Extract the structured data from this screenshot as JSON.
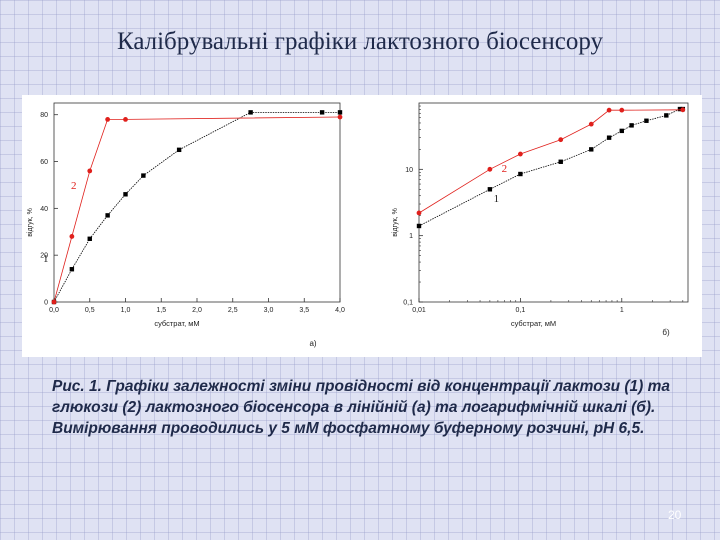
{
  "slide": {
    "title": "Калібрувальні графіки лактозного біосенсору",
    "caption": "Рис. 1. Графіки залежності зміни провідності від концентрації лактози (1) та глюкози (2) лактозного біосенсора в лінійній (а) та логарифмічній шкалі (б). Вимірювання проводились у 5 мМ фосфатному буферному розчині, рН 6,5.",
    "page_number": "20"
  },
  "chart_data": [
    {
      "type": "scatter",
      "panel_label": "а)",
      "xlabel": "субстрат, мМ",
      "ylabel": "відгук, %",
      "xlim": [
        0,
        4.0
      ],
      "ylim": [
        0,
        85
      ],
      "x_ticks": [
        0,
        0.5,
        1.0,
        1.5,
        2.0,
        2.5,
        3.0,
        3.5,
        4.0
      ],
      "x_tick_labels": [
        "0,0",
        "0,5",
        "1,0",
        "1,5",
        "2,0",
        "2,5",
        "3,0",
        "3,5",
        "4,0"
      ],
      "y_ticks": [
        0,
        20,
        40,
        60,
        80
      ],
      "y_tick_labels": [
        "0",
        "20",
        "40",
        "60",
        "80"
      ],
      "grid": false,
      "series": [
        {
          "name": "1",
          "color": "#000000",
          "marker": "square",
          "x": [
            0,
            0.25,
            0.5,
            0.75,
            1.0,
            1.25,
            1.75,
            2.75,
            3.75,
            4.0
          ],
          "y": [
            0,
            14,
            27,
            37,
            46,
            54,
            65,
            81,
            81,
            81
          ]
        },
        {
          "name": "2",
          "color": "#e0201c",
          "marker": "circle",
          "x": [
            0,
            0.25,
            0.5,
            0.75,
            1.0,
            4.0
          ],
          "y": [
            0,
            28,
            56,
            78,
            78,
            79
          ]
        }
      ]
    },
    {
      "type": "scatter",
      "panel_label": "б)",
      "xlabel": "субстрат, мМ",
      "ylabel": "відгук, %",
      "xscale": "log",
      "yscale": "log",
      "xlim": [
        0.01,
        4.5
      ],
      "ylim": [
        0.1,
        100
      ],
      "x_ticks": [
        0.01,
        0.1,
        1
      ],
      "x_tick_labels": [
        "0,01",
        "0,1",
        "1"
      ],
      "y_ticks": [
        0.1,
        1,
        10
      ],
      "y_tick_labels": [
        "0,1",
        "1",
        "10"
      ],
      "grid": false,
      "series": [
        {
          "name": "1",
          "color": "#000000",
          "marker": "square",
          "x": [
            0.01,
            0.05,
            0.1,
            0.25,
            0.5,
            0.75,
            1.0,
            1.25,
            1.75,
            2.75,
            3.75,
            4.0
          ],
          "y": [
            1.4,
            5,
            8.5,
            13,
            20,
            30,
            38,
            46,
            54,
            65,
            81,
            81
          ]
        },
        {
          "name": "2",
          "color": "#e0201c",
          "marker": "circle",
          "x": [
            0.01,
            0.05,
            0.1,
            0.25,
            0.5,
            0.75,
            1.0,
            4.0
          ],
          "y": [
            2.2,
            10,
            17,
            28,
            48,
            78,
            78,
            79
          ]
        }
      ]
    }
  ]
}
